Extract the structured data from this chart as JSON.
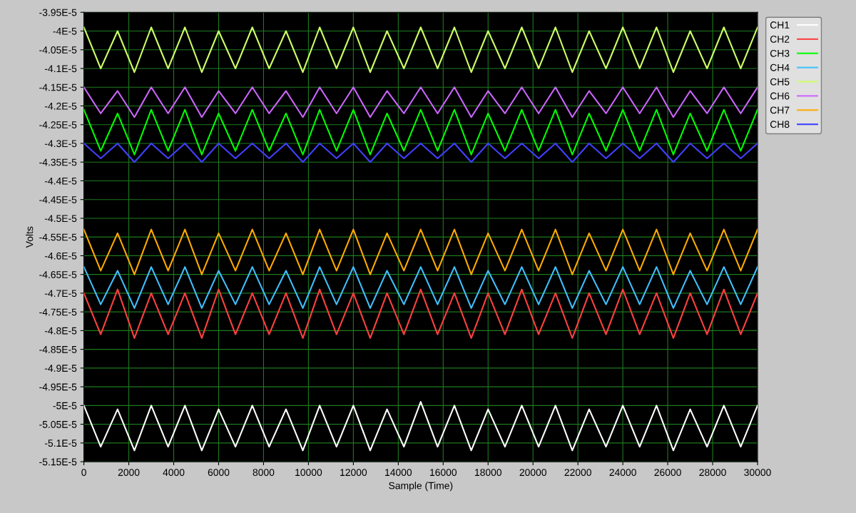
{
  "chart_data": {
    "type": "line",
    "xlabel": "Sample (Time)",
    "ylabel": "Volts",
    "x": [
      0,
      750,
      1500,
      2250,
      3000,
      3750,
      4500,
      5250,
      6000,
      6750,
      7500,
      8250,
      9000,
      9750,
      10500,
      11250,
      12000,
      12750,
      13500,
      14250,
      15000,
      15750,
      16500,
      17250,
      18000,
      18750,
      19500,
      20250,
      21000,
      21750,
      22500,
      23250,
      24000,
      24750,
      25500,
      26250,
      27000,
      27750,
      28500,
      29250,
      30000
    ],
    "series": [
      {
        "name": "CH1",
        "color": "#ffffff",
        "values": [
          -5e-05,
          -5.11e-05,
          -5.01e-05,
          -5.12e-05,
          -5e-05,
          -5.11e-05,
          -5e-05,
          -5.12e-05,
          -5.01e-05,
          -5.11e-05,
          -5e-05,
          -5.11e-05,
          -5.01e-05,
          -5.12e-05,
          -5e-05,
          -5.11e-05,
          -5e-05,
          -5.12e-05,
          -5.01e-05,
          -5.11e-05,
          -4.99e-05,
          -5.11e-05,
          -5e-05,
          -5.12e-05,
          -5.01e-05,
          -5.11e-05,
          -5e-05,
          -5.11e-05,
          -5e-05,
          -5.12e-05,
          -5.01e-05,
          -5.11e-05,
          -5e-05,
          -5.11e-05,
          -5e-05,
          -5.12e-05,
          -5.01e-05,
          -5.11e-05,
          -5e-05,
          -5.11e-05,
          -5e-05
        ]
      },
      {
        "name": "CH2",
        "color": "#ff4040",
        "values": [
          -4.7e-05,
          -4.81e-05,
          -4.69e-05,
          -4.82e-05,
          -4.7e-05,
          -4.81e-05,
          -4.7e-05,
          -4.82e-05,
          -4.69e-05,
          -4.81e-05,
          -4.7e-05,
          -4.81e-05,
          -4.7e-05,
          -4.82e-05,
          -4.69e-05,
          -4.81e-05,
          -4.7e-05,
          -4.82e-05,
          -4.7e-05,
          -4.81e-05,
          -4.69e-05,
          -4.81e-05,
          -4.7e-05,
          -4.82e-05,
          -4.7e-05,
          -4.81e-05,
          -4.69e-05,
          -4.81e-05,
          -4.7e-05,
          -4.82e-05,
          -4.7e-05,
          -4.81e-05,
          -4.69e-05,
          -4.81e-05,
          -4.7e-05,
          -4.82e-05,
          -4.7e-05,
          -4.81e-05,
          -4.69e-05,
          -4.81e-05,
          -4.7e-05
        ]
      },
      {
        "name": "CH3",
        "color": "#00ff00",
        "values": [
          -4.21e-05,
          -4.32e-05,
          -4.22e-05,
          -4.33e-05,
          -4.21e-05,
          -4.32e-05,
          -4.21e-05,
          -4.33e-05,
          -4.22e-05,
          -4.32e-05,
          -4.21e-05,
          -4.32e-05,
          -4.22e-05,
          -4.33e-05,
          -4.21e-05,
          -4.32e-05,
          -4.21e-05,
          -4.33e-05,
          -4.22e-05,
          -4.32e-05,
          -4.21e-05,
          -4.32e-05,
          -4.21e-05,
          -4.33e-05,
          -4.22e-05,
          -4.32e-05,
          -4.21e-05,
          -4.32e-05,
          -4.21e-05,
          -4.33e-05,
          -4.22e-05,
          -4.32e-05,
          -4.21e-05,
          -4.32e-05,
          -4.21e-05,
          -4.33e-05,
          -4.22e-05,
          -4.32e-05,
          -4.21e-05,
          -4.32e-05,
          -4.21e-05
        ]
      },
      {
        "name": "CH4",
        "color": "#40c0ff",
        "values": [
          -4.63e-05,
          -4.73e-05,
          -4.64e-05,
          -4.74e-05,
          -4.63e-05,
          -4.73e-05,
          -4.63e-05,
          -4.74e-05,
          -4.64e-05,
          -4.73e-05,
          -4.63e-05,
          -4.73e-05,
          -4.64e-05,
          -4.74e-05,
          -4.63e-05,
          -4.73e-05,
          -4.63e-05,
          -4.74e-05,
          -4.64e-05,
          -4.73e-05,
          -4.63e-05,
          -4.73e-05,
          -4.63e-05,
          -4.74e-05,
          -4.64e-05,
          -4.73e-05,
          -4.63e-05,
          -4.73e-05,
          -4.63e-05,
          -4.74e-05,
          -4.64e-05,
          -4.73e-05,
          -4.63e-05,
          -4.73e-05,
          -4.63e-05,
          -4.74e-05,
          -4.64e-05,
          -4.73e-05,
          -4.63e-05,
          -4.73e-05,
          -4.63e-05
        ]
      },
      {
        "name": "CH5",
        "color": "#ccff66",
        "values": [
          -3.99e-05,
          -4.1e-05,
          -4e-05,
          -4.11e-05,
          -3.99e-05,
          -4.1e-05,
          -3.99e-05,
          -4.11e-05,
          -4e-05,
          -4.1e-05,
          -3.99e-05,
          -4.1e-05,
          -4e-05,
          -4.11e-05,
          -3.99e-05,
          -4.1e-05,
          -3.99e-05,
          -4.11e-05,
          -4e-05,
          -4.1e-05,
          -3.99e-05,
          -4.1e-05,
          -3.99e-05,
          -4.11e-05,
          -4e-05,
          -4.1e-05,
          -3.99e-05,
          -4.1e-05,
          -3.99e-05,
          -4.11e-05,
          -4e-05,
          -4.1e-05,
          -3.99e-05,
          -4.1e-05,
          -3.99e-05,
          -4.11e-05,
          -4e-05,
          -4.1e-05,
          -3.99e-05,
          -4.1e-05,
          -3.99e-05
        ]
      },
      {
        "name": "CH6",
        "color": "#cc66ff",
        "values": [
          -4.15e-05,
          -4.22e-05,
          -4.16e-05,
          -4.23e-05,
          -4.15e-05,
          -4.22e-05,
          -4.15e-05,
          -4.23e-05,
          -4.16e-05,
          -4.22e-05,
          -4.15e-05,
          -4.22e-05,
          -4.16e-05,
          -4.23e-05,
          -4.15e-05,
          -4.22e-05,
          -4.15e-05,
          -4.23e-05,
          -4.16e-05,
          -4.22e-05,
          -4.15e-05,
          -4.22e-05,
          -4.15e-05,
          -4.23e-05,
          -4.16e-05,
          -4.22e-05,
          -4.15e-05,
          -4.22e-05,
          -4.15e-05,
          -4.23e-05,
          -4.16e-05,
          -4.22e-05,
          -4.15e-05,
          -4.22e-05,
          -4.15e-05,
          -4.23e-05,
          -4.16e-05,
          -4.22e-05,
          -4.15e-05,
          -4.22e-05,
          -4.15e-05
        ]
      },
      {
        "name": "CH7",
        "color": "#ffaa00",
        "values": [
          -4.53e-05,
          -4.64e-05,
          -4.54e-05,
          -4.65e-05,
          -4.53e-05,
          -4.64e-05,
          -4.53e-05,
          -4.65e-05,
          -4.54e-05,
          -4.64e-05,
          -4.53e-05,
          -4.64e-05,
          -4.54e-05,
          -4.65e-05,
          -4.53e-05,
          -4.64e-05,
          -4.53e-05,
          -4.65e-05,
          -4.54e-05,
          -4.64e-05,
          -4.53e-05,
          -4.64e-05,
          -4.53e-05,
          -4.65e-05,
          -4.54e-05,
          -4.64e-05,
          -4.53e-05,
          -4.64e-05,
          -4.53e-05,
          -4.65e-05,
          -4.54e-05,
          -4.64e-05,
          -4.53e-05,
          -4.64e-05,
          -4.53e-05,
          -4.65e-05,
          -4.54e-05,
          -4.64e-05,
          -4.53e-05,
          -4.64e-05,
          -4.53e-05
        ]
      },
      {
        "name": "CH8",
        "color": "#4040ff",
        "values": [
          -4.3e-05,
          -4.34e-05,
          -4.3e-05,
          -4.35e-05,
          -4.3e-05,
          -4.34e-05,
          -4.3e-05,
          -4.35e-05,
          -4.3e-05,
          -4.34e-05,
          -4.3e-05,
          -4.34e-05,
          -4.3e-05,
          -4.35e-05,
          -4.3e-05,
          -4.34e-05,
          -4.3e-05,
          -4.35e-05,
          -4.3e-05,
          -4.34e-05,
          -4.3e-05,
          -4.34e-05,
          -4.3e-05,
          -4.35e-05,
          -4.3e-05,
          -4.34e-05,
          -4.3e-05,
          -4.34e-05,
          -4.3e-05,
          -4.35e-05,
          -4.3e-05,
          -4.34e-05,
          -4.3e-05,
          -4.34e-05,
          -4.3e-05,
          -4.35e-05,
          -4.3e-05,
          -4.34e-05,
          -4.3e-05,
          -4.34e-05,
          -4.3e-05
        ]
      }
    ],
    "xlim": [
      0,
      30000
    ],
    "xticks": [
      0,
      2000,
      4000,
      6000,
      8000,
      10000,
      12000,
      14000,
      16000,
      18000,
      20000,
      22000,
      24000,
      26000,
      28000,
      30000
    ],
    "ylim": [
      -5.15e-05,
      -3.95e-05
    ],
    "yticks": [
      {
        "value": -3.95e-05,
        "label": "-3.95E-5"
      },
      {
        "value": -4e-05,
        "label": "-4E-5"
      },
      {
        "value": -4.05e-05,
        "label": "-4.05E-5"
      },
      {
        "value": -4.1e-05,
        "label": "-4.1E-5"
      },
      {
        "value": -4.15e-05,
        "label": "-4.15E-5"
      },
      {
        "value": -4.2e-05,
        "label": "-4.2E-5"
      },
      {
        "value": -4.25e-05,
        "label": "-4.25E-5"
      },
      {
        "value": -4.3e-05,
        "label": "-4.3E-5"
      },
      {
        "value": -4.35e-05,
        "label": "-4.35E-5"
      },
      {
        "value": -4.4e-05,
        "label": "-4.4E-5"
      },
      {
        "value": -4.45e-05,
        "label": "-4.45E-5"
      },
      {
        "value": -4.5e-05,
        "label": "-4.5E-5"
      },
      {
        "value": -4.55e-05,
        "label": "-4.55E-5"
      },
      {
        "value": -4.6e-05,
        "label": "-4.6E-5"
      },
      {
        "value": -4.65e-05,
        "label": "-4.65E-5"
      },
      {
        "value": -4.7e-05,
        "label": "-4.7E-5"
      },
      {
        "value": -4.75e-05,
        "label": "-4.75E-5"
      },
      {
        "value": -4.8e-05,
        "label": "-4.8E-5"
      },
      {
        "value": -4.85e-05,
        "label": "-4.85E-5"
      },
      {
        "value": -4.9e-05,
        "label": "-4.9E-5"
      },
      {
        "value": -4.95e-05,
        "label": "-4.95E-5"
      },
      {
        "value": -5e-05,
        "label": "-5E-5"
      },
      {
        "value": -5.05e-05,
        "label": "-5.05E-5"
      },
      {
        "value": -5.1e-05,
        "label": "-5.1E-5"
      },
      {
        "value": -5.15e-05,
        "label": "-5.15E-5"
      }
    ],
    "grid": true,
    "legend": "top right",
    "line_style": "solid",
    "marker": "none"
  }
}
